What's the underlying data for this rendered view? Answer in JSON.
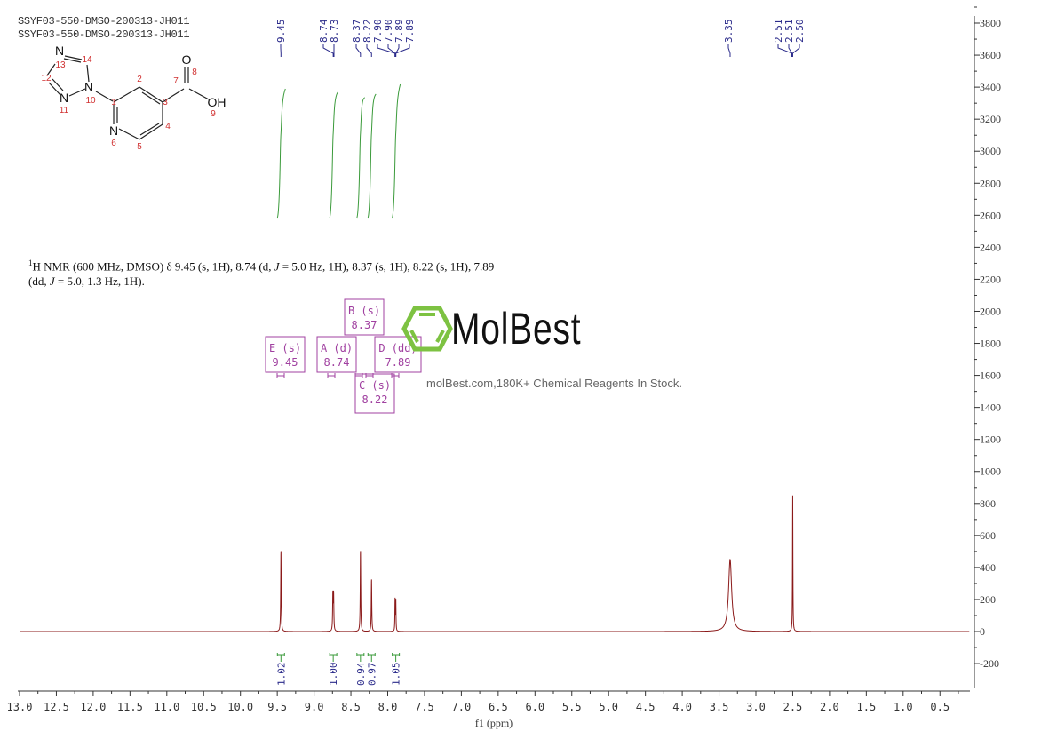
{
  "header": {
    "line1": "SSYF03-550-DMSO-200313-JH011",
    "line2": "SSYF03-550-DMSO-200313-JH011"
  },
  "structure": {
    "atoms": [
      {
        "sym": "N",
        "num": "14"
      },
      {
        "sym": "",
        "num": "13"
      },
      {
        "sym": "",
        "num": "12"
      },
      {
        "sym": "N",
        "num": "11"
      },
      {
        "sym": "N",
        "num": "10"
      },
      {
        "sym": "",
        "num": "1"
      },
      {
        "sym": "",
        "num": "2"
      },
      {
        "sym": "",
        "num": "3"
      },
      {
        "sym": "",
        "num": "4"
      },
      {
        "sym": "",
        "num": "5"
      },
      {
        "sym": "N",
        "num": "6"
      },
      {
        "sym": "",
        "num": "7"
      },
      {
        "sym": "O",
        "num": "8"
      },
      {
        "sym": "OH",
        "num": "9"
      }
    ]
  },
  "annotation": {
    "segments": [
      {
        "t": "1",
        "style": "sup"
      },
      {
        "t": "H NMR (600 MHz, DMSO) δ 9.45 (s, 1H), 8.74 (d, ",
        "style": ""
      },
      {
        "t": "J",
        "style": "i"
      },
      {
        "t": " = 5.0 Hz, 1H), 8.37 (s, 1H), 8.22 (s, 1H), 7.89",
        "style": ""
      },
      {
        "t": "",
        "style": "br"
      },
      {
        "t": "(dd, ",
        "style": ""
      },
      {
        "t": "J",
        "style": "i"
      },
      {
        "t": " = 5.0, 1.3 Hz, 1H).",
        "style": ""
      }
    ]
  },
  "multiplets": [
    {
      "label": "E (s)",
      "shift": "9.45"
    },
    {
      "label": "A (d)",
      "shift": "8.74"
    },
    {
      "label": "B (s)",
      "shift": "8.37"
    },
    {
      "label": "D (dd)",
      "shift": "7.89"
    },
    {
      "label": "C (s)",
      "shift": "8.22"
    }
  ],
  "watermark": {
    "title": "MolBest",
    "subtitle": "molBest.com,180K+ Chemical Reagents In Stock."
  },
  "colors": {
    "spectrum": "#8b1a1a",
    "integral": "#3a9a3a",
    "peak_label": "#2a2a8a",
    "multiplet": "#a040a0",
    "logo": "#7dc242"
  },
  "chart_data": {
    "type": "line",
    "xlabel": "f1 (ppm)",
    "xlim": [
      13.0,
      0.1
    ],
    "x_reversed": true,
    "ylim": [
      -350,
      3850
    ],
    "xticks": [
      "13.0",
      "12.5",
      "12.0",
      "11.5",
      "11.0",
      "10.5",
      "10.0",
      "9.5",
      "9.0",
      "8.5",
      "8.0",
      "7.5",
      "7.0",
      "6.5",
      "6.0",
      "5.5",
      "5.0",
      "4.5",
      "4.0",
      "3.5",
      "3.0",
      "2.5",
      "2.0",
      "1.5",
      "1.0",
      "0.5"
    ],
    "yticks": [
      "-200",
      "0",
      "200",
      "400",
      "600",
      "800",
      "1000",
      "1200",
      "1400",
      "1600",
      "1800",
      "2000",
      "2200",
      "2400",
      "2600",
      "2800",
      "3000",
      "3200",
      "3400",
      "3600",
      "3800"
    ],
    "peaks": [
      {
        "ppm": 9.45,
        "height": 510
      },
      {
        "ppm": 8.745,
        "height": 225
      },
      {
        "ppm": 8.735,
        "height": 225
      },
      {
        "ppm": 8.37,
        "height": 510
      },
      {
        "ppm": 8.22,
        "height": 330
      },
      {
        "ppm": 7.9,
        "height": 195
      },
      {
        "ppm": 7.89,
        "height": 195
      },
      {
        "ppm": 3.35,
        "height": 450
      },
      {
        "ppm": 2.5,
        "height": 850
      }
    ],
    "peak_labels": [
      "9.45",
      "8.74",
      "8.73",
      "8.37",
      "8.22",
      "7.90",
      "7.90",
      "7.89",
      "7.89",
      "3.35",
      "2.51",
      "2.51",
      "2.50"
    ],
    "integrals": [
      {
        "ppm": 9.45,
        "value": "1.02"
      },
      {
        "ppm": 8.74,
        "value": "1.00"
      },
      {
        "ppm": 8.37,
        "value": "0.94"
      },
      {
        "ppm": 8.22,
        "value": "0.97"
      },
      {
        "ppm": 7.89,
        "value": "1.05"
      }
    ],
    "grid": false
  }
}
